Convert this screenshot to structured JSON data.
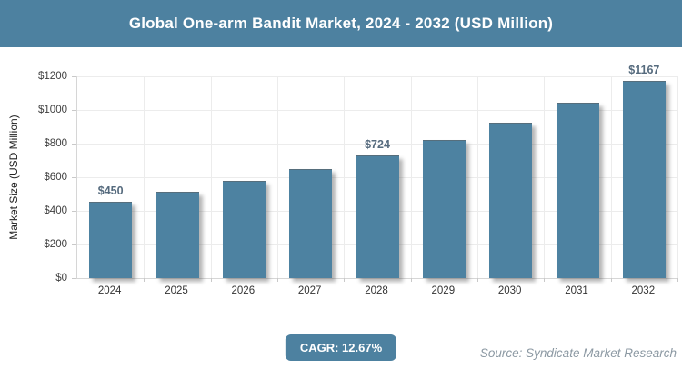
{
  "title": "Global One-arm Bandit Market, 2024 - 2032 (USD Million)",
  "chart_data": {
    "type": "bar",
    "title": "Global One-arm Bandit Market, 2024 - 2032 (USD Million)",
    "categories": [
      "2024",
      "2025",
      "2026",
      "2027",
      "2028",
      "2029",
      "2030",
      "2031",
      "2032"
    ],
    "values": [
      450,
      507,
      571,
      644,
      724,
      816,
      919,
      1036,
      1167
    ],
    "data_labels": [
      "$450",
      "",
      "",
      "",
      "$724",
      "",
      "",
      "",
      "$1167"
    ],
    "xlabel": "",
    "ylabel": "Market Size (USD Million)",
    "ylim": [
      0,
      1200
    ],
    "ytick_step": 200,
    "ytick_labels": [
      "$0",
      "$200",
      "$400",
      "$600",
      "$800",
      "$1000",
      "$1200"
    ],
    "grid": true,
    "legend": "none",
    "bar_color": "#4d82a1"
  },
  "footer": {
    "cagr_label": "CAGR: 12.67%",
    "source": "Source: Syndicate Market Research"
  },
  "colors": {
    "header_bg": "#4d81a0",
    "bar": "#4d82a1",
    "data_label": "#566b7e",
    "gridline": "#ececec",
    "axis_text": "#404040",
    "source_text": "#8c99a3"
  }
}
